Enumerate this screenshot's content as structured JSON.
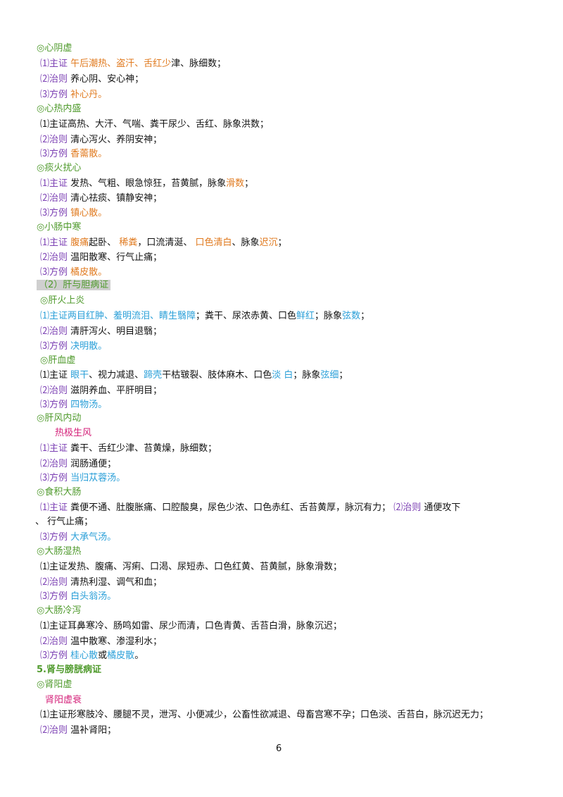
{
  "page_number": "6",
  "lines": [
    {
      "top": 60,
      "left": 52,
      "segs": [
        {
          "t": "◎心阴虚",
          "c": "g"
        }
      ]
    },
    {
      "top": 82,
      "left": 57,
      "segs": [
        {
          "t": "⑴主证  ",
          "c": "p"
        },
        {
          "t": "午后潮热、盗汗、舌红少",
          "c": "o"
        },
        {
          "t": "津、脉细数；",
          "c": "k"
        }
      ]
    },
    {
      "top": 104,
      "left": 57,
      "segs": [
        {
          "t": "⑵治则  ",
          "c": "p"
        },
        {
          "t": "养心阴、安心神；",
          "c": "k"
        }
      ]
    },
    {
      "top": 126,
      "left": 57,
      "segs": [
        {
          "t": "⑶方例  ",
          "c": "p"
        },
        {
          "t": "补心丹。",
          "c": "o"
        }
      ]
    },
    {
      "top": 146,
      "left": 52,
      "segs": [
        {
          "t": "◎心热内盛",
          "c": "g"
        }
      ]
    },
    {
      "top": 168,
      "left": 57,
      "segs": [
        {
          "t": "⑴主证高热、大汗、气喘、粪干尿少、舌红、脉象洪数；",
          "c": "k"
        }
      ]
    },
    {
      "top": 190,
      "left": 57,
      "segs": [
        {
          "t": "⑵治则  ",
          "c": "p"
        },
        {
          "t": "清心泻火、养阴安神；",
          "c": "k"
        }
      ]
    },
    {
      "top": 210,
      "left": 57,
      "segs": [
        {
          "t": "⑶方例  ",
          "c": "p"
        },
        {
          "t": "香薷散。",
          "c": "o"
        }
      ]
    },
    {
      "top": 230,
      "left": 52,
      "segs": [
        {
          "t": "◎痰火扰心",
          "c": "g"
        }
      ]
    },
    {
      "top": 252,
      "left": 57,
      "segs": [
        {
          "t": "⑴主证  ",
          "c": "p"
        },
        {
          "t": "发热、气粗、眼急惊狂，苔黄腻，脉象",
          "c": "k"
        },
        {
          "t": "滑数",
          "c": "o"
        },
        {
          "t": "；",
          "c": "k"
        }
      ]
    },
    {
      "top": 273,
      "left": 57,
      "segs": [
        {
          "t": "⑵治则  ",
          "c": "p"
        },
        {
          "t": "清心祛痰、镇静安神；",
          "c": "k"
        }
      ]
    },
    {
      "top": 294,
      "left": 57,
      "segs": [
        {
          "t": "⑶方例  ",
          "c": "p"
        },
        {
          "t": "镇心散。",
          "c": "o"
        }
      ]
    },
    {
      "top": 314,
      "left": 52,
      "segs": [
        {
          "t": "◎小肠中寒",
          "c": "g"
        }
      ]
    },
    {
      "top": 336,
      "left": 57,
      "segs": [
        {
          "t": "⑴主证  ",
          "c": "p"
        },
        {
          "t": "腹痛",
          "c": "o"
        },
        {
          "t": "起卧、  ",
          "c": "k"
        },
        {
          "t": "稀粪",
          "c": "o"
        },
        {
          "t": "，口流清涎、   ",
          "c": "k"
        },
        {
          "t": "口色清白",
          "c": "o"
        },
        {
          "t": "、脉象",
          "c": "k"
        },
        {
          "t": "迟沉",
          "c": "o"
        },
        {
          "t": "；",
          "c": "k"
        }
      ]
    },
    {
      "top": 357,
      "left": 57,
      "segs": [
        {
          "t": "⑵治则  ",
          "c": "p"
        },
        {
          "t": "温阳散寒、行气止痛；",
          "c": "k"
        }
      ]
    },
    {
      "top": 378,
      "left": 57,
      "segs": [
        {
          "t": "⑶方例  ",
          "c": "p"
        },
        {
          "t": "橘皮散。",
          "c": "o"
        }
      ]
    },
    {
      "top": 396,
      "left": 52,
      "segs": [
        {
          "t": "（2）肝与胆病证",
          "c": "g",
          "hl": true
        }
      ]
    },
    {
      "top": 418,
      "left": 57,
      "segs": [
        {
          "t": "◎肝火上炎",
          "c": "g"
        }
      ]
    },
    {
      "top": 440,
      "left": 57,
      "segs": [
        {
          "t": "⑴主证两目红肿、羞明流泪、睛生翳障",
          "c": "b"
        },
        {
          "t": "；粪干、尿浓赤黄、口色",
          "c": "k"
        },
        {
          "t": "鲜红",
          "c": "b"
        },
        {
          "t": "；脉象",
          "c": "k"
        },
        {
          "t": "弦数",
          "c": "b"
        },
        {
          "t": "；",
          "c": "k"
        }
      ]
    },
    {
      "top": 462,
      "left": 57,
      "segs": [
        {
          "t": "⑵治则  ",
          "c": "p"
        },
        {
          "t": "清肝泻火、明目退翳；",
          "c": "k"
        }
      ]
    },
    {
      "top": 483,
      "left": 57,
      "segs": [
        {
          "t": "⑶方例  ",
          "c": "p"
        },
        {
          "t": "决明散。",
          "c": "b"
        }
      ]
    },
    {
      "top": 503,
      "left": 57,
      "segs": [
        {
          "t": "◎肝血虚",
          "c": "g"
        }
      ]
    },
    {
      "top": 524,
      "left": 57,
      "segs": [
        {
          "t": "⑴主证    ",
          "c": "k"
        },
        {
          "t": "眼干",
          "c": "b"
        },
        {
          "t": "、视力减退、",
          "c": "k"
        },
        {
          "t": "蹄壳",
          "c": "b"
        },
        {
          "t": "干枯皲裂、肢体麻木、口色",
          "c": "k"
        },
        {
          "t": "淡  白",
          "c": "b"
        },
        {
          "t": "；脉象",
          "c": "k"
        },
        {
          "t": "弦细",
          "c": "b"
        },
        {
          "t": "；",
          "c": "k"
        }
      ]
    },
    {
      "top": 546,
      "left": 57,
      "segs": [
        {
          "t": "⑵治则  ",
          "c": "p"
        },
        {
          "t": "滋阴养血、平肝明目；",
          "c": "k"
        }
      ]
    },
    {
      "top": 566,
      "left": 57,
      "segs": [
        {
          "t": "⑶方例  ",
          "c": "p"
        },
        {
          "t": "四物汤。",
          "c": "b"
        }
      ]
    },
    {
      "top": 585,
      "left": 52,
      "segs": [
        {
          "t": "◎肝风内动",
          "c": "g"
        }
      ]
    },
    {
      "top": 606,
      "left": 78,
      "segs": [
        {
          "t": "热极生风",
          "c": "m"
        }
      ]
    },
    {
      "top": 628,
      "left": 57,
      "segs": [
        {
          "t": "⑴主证  ",
          "c": "p"
        },
        {
          "t": "粪干、舌红少津、苔黄燥，脉细数；",
          "c": "k"
        }
      ]
    },
    {
      "top": 650,
      "left": 57,
      "segs": [
        {
          "t": "⑵治则  ",
          "c": "p"
        },
        {
          "t": "润肠通便；",
          "c": "k"
        }
      ]
    },
    {
      "top": 670,
      "left": 57,
      "segs": [
        {
          "t": "⑶方例  ",
          "c": "p"
        },
        {
          "t": "当归苁蓉汤。",
          "c": "b"
        }
      ]
    },
    {
      "top": 690,
      "left": 52,
      "segs": [
        {
          "t": "◎食积大肠",
          "c": "g"
        }
      ]
    },
    {
      "top": 712,
      "left": 57,
      "segs": [
        {
          "t": "⑴主证  ",
          "c": "p"
        },
        {
          "t": "粪便不通、肚腹胀痛、口腔酸臭，尿色少浓、口色赤红、舌苔黄厚，脉沉有力；  ",
          "c": "k"
        },
        {
          "t": "⑵治则  ",
          "c": "p"
        },
        {
          "t": "通便攻下",
          "c": "k"
        }
      ]
    },
    {
      "top": 732,
      "left": 50,
      "segs": [
        {
          "t": "、  行气止痛；",
          "c": "k"
        }
      ]
    },
    {
      "top": 754,
      "left": 57,
      "segs": [
        {
          "t": "⑶方例  ",
          "c": "p"
        },
        {
          "t": "大承气汤。",
          "c": "b"
        }
      ]
    },
    {
      "top": 774,
      "left": 52,
      "segs": [
        {
          "t": "◎大肠湿热",
          "c": "g"
        }
      ]
    },
    {
      "top": 796,
      "left": 57,
      "segs": [
        {
          "t": "⑴主证发热、腹痛、泻痢、口渴、尿短赤、口色红黄、苔黄腻，脉象滑数；",
          "c": "k"
        }
      ]
    },
    {
      "top": 818,
      "left": 57,
      "segs": [
        {
          "t": "⑵治则  ",
          "c": "p"
        },
        {
          "t": "清热利湿、调气和血；",
          "c": "k"
        }
      ]
    },
    {
      "top": 838,
      "left": 57,
      "segs": [
        {
          "t": "⑶方例  ",
          "c": "p"
        },
        {
          "t": "白头翁汤。",
          "c": "b"
        }
      ]
    },
    {
      "top": 858,
      "left": 52,
      "segs": [
        {
          "t": "◎大肠冷泻",
          "c": "g"
        }
      ]
    },
    {
      "top": 880,
      "left": 57,
      "segs": [
        {
          "t": "⑴主证耳鼻寒冷、肠鸣如雷、尿少而清，口色青黄、舌苔白滑，脉象沉迟；",
          "c": "k"
        }
      ]
    },
    {
      "top": 902,
      "left": 57,
      "segs": [
        {
          "t": "⑵治则  ",
          "c": "p"
        },
        {
          "t": "温中散寒、渗湿利水；",
          "c": "k"
        }
      ]
    },
    {
      "top": 922,
      "left": 57,
      "segs": [
        {
          "t": "⑶方例  ",
          "c": "p"
        },
        {
          "t": "桂心散",
          "c": "b"
        },
        {
          "t": "或",
          "c": "k"
        },
        {
          "t": "橘皮散",
          "c": "b"
        },
        {
          "t": "。",
          "c": "k"
        }
      ]
    },
    {
      "top": 942,
      "left": 52,
      "segs": [
        {
          "t": "5.肾与膀胱病证",
          "c": "g",
          "bold": true
        }
      ]
    },
    {
      "top": 963,
      "left": 52,
      "segs": [
        {
          "t": "◎肾阳虚",
          "c": "g"
        }
      ]
    },
    {
      "top": 985,
      "left": 64,
      "segs": [
        {
          "t": "肾阳虚衰",
          "c": "m"
        }
      ]
    },
    {
      "top": 1006,
      "left": 57,
      "segs": [
        {
          "t": "⑴主证形寒肢冷、腰腿不灵，泄泻、小便减少，公畜性欲减退、母畜宫寒不孕；口色淡、舌苔白，脉沉迟无力；",
          "c": "k"
        }
      ]
    },
    {
      "top": 1028,
      "left": 57,
      "segs": [
        {
          "t": "⑵治则  ",
          "c": "p"
        },
        {
          "t": "温补肾阳；",
          "c": "k"
        }
      ]
    }
  ]
}
